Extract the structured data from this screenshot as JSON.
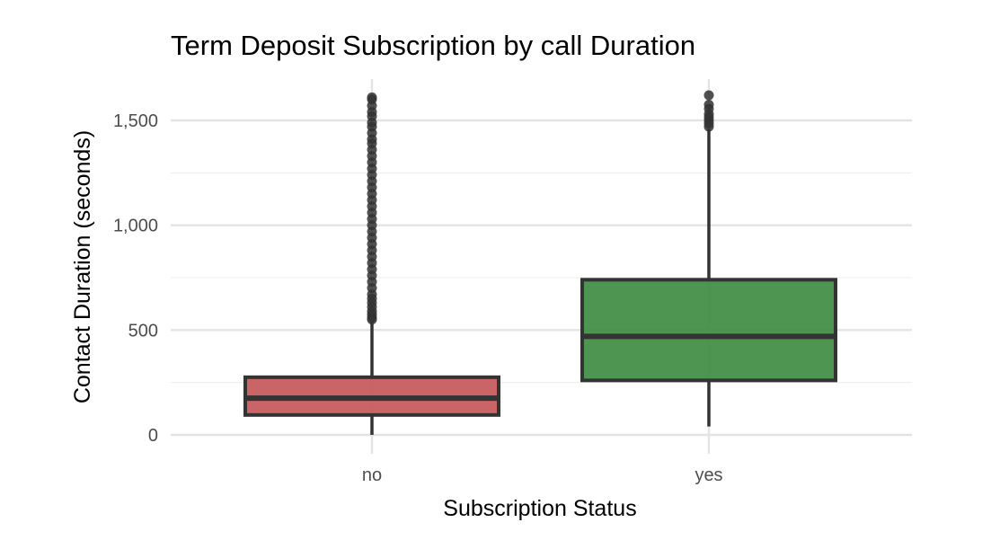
{
  "chart_data": {
    "type": "boxplot",
    "title": "Term Deposit Subscription by call Duration",
    "xlabel": "Subscription Status",
    "ylabel": "Contact Duration (seconds)",
    "ylim": [
      -60,
      1700
    ],
    "yticks": [
      0,
      500,
      1000,
      1500
    ],
    "ytick_labels": [
      "0",
      "500",
      "1,000",
      "1,500"
    ],
    "minor_gridlines": [
      250,
      750,
      1250
    ],
    "grid": true,
    "legend": "none",
    "categories": [
      "no",
      "yes"
    ],
    "boxes": [
      {
        "category": "no",
        "min": 0,
        "q1": 95,
        "median": 175,
        "q3": 275,
        "whisker_high": 545,
        "fill": "#c45355",
        "outliers": [
          550,
          560,
          575,
          590,
          610,
          630,
          650,
          670,
          700,
          730,
          760,
          790,
          820,
          850,
          880,
          910,
          940,
          970,
          1000,
          1030,
          1060,
          1090,
          1120,
          1150,
          1180,
          1210,
          1240,
          1270,
          1300,
          1330,
          1360,
          1390,
          1410,
          1440,
          1470,
          1490,
          1520,
          1540,
          1570,
          1600,
          1610
        ]
      },
      {
        "category": "yes",
        "min": 40,
        "q1": 260,
        "median": 470,
        "q3": 740,
        "whisker_high": 1460,
        "fill": "#3a8a3e",
        "outliers": [
          1470,
          1485,
          1500,
          1515,
          1530,
          1555,
          1575,
          1620
        ]
      }
    ]
  }
}
